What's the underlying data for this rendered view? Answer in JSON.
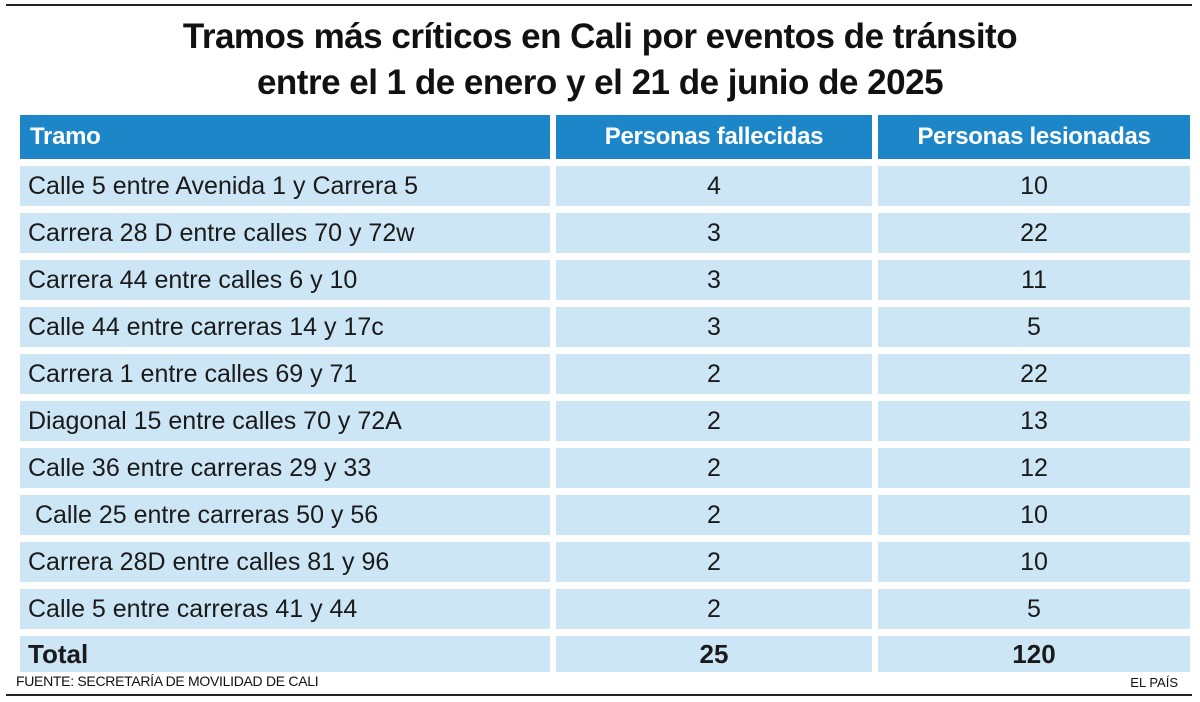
{
  "title": {
    "line1": "Tramos más críticos  en Cali por eventos de tránsito",
    "line2": "entre el 1 de enero y el 21  de junio de 2025"
  },
  "table": {
    "headers": [
      "Tramo",
      "Personas fallecidas",
      "Personas lesionadas"
    ],
    "rows": [
      [
        "Calle 5 entre Avenida 1 y Carrera 5",
        "4",
        "10"
      ],
      [
        "Carrera 28 D entre calles 70 y 72w",
        "3",
        "22"
      ],
      [
        "Carrera 44 entre calles 6 y 10",
        "3",
        "11"
      ],
      [
        "Calle 44 entre carreras 14 y 17c",
        "3",
        "5"
      ],
      [
        "Carrera 1 entre calles 69 y 71",
        "2",
        "22"
      ],
      [
        "Diagonal 15 entre calles 70 y 72A",
        "2",
        "13"
      ],
      [
        "Calle 36 entre carreras 29 y 33",
        "2",
        "12"
      ],
      [
        " Calle 25 entre carreras 50 y 56",
        "2",
        "10"
      ],
      [
        "Carrera 28D entre calles 81 y 96",
        "2",
        "10"
      ],
      [
        "Calle 5 entre carreras 41 y 44",
        "2",
        "5"
      ]
    ],
    "total": [
      "Total",
      "25",
      "120"
    ]
  },
  "footer": {
    "source": "FUENTE: SECRETARÍA DE MOVILIDAD DE CALI",
    "brand": "EL PAÍS"
  },
  "colors": {
    "header_bg": "#1d86c9",
    "row_bg": "#cde6f6",
    "header_text": "#ffffff"
  }
}
